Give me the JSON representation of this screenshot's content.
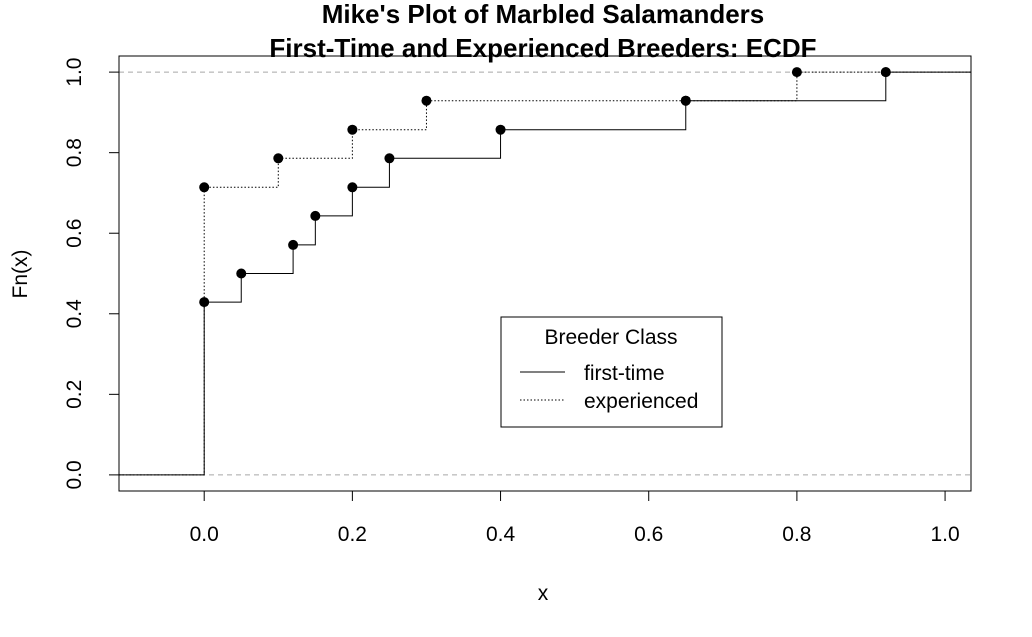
{
  "chart_data": {
    "type": "line",
    "title": "Mike's Plot of Marbled Salamanders",
    "subtitle": "First-Time and Experienced Breeders: ECDF",
    "xlabel": "x",
    "ylabel": "Fn(x)",
    "xlim": [
      -0.115,
      1.035
    ],
    "ylim": [
      -0.04,
      1.04
    ],
    "x_ticks": [
      "0.0",
      "0.2",
      "0.4",
      "0.6",
      "0.8",
      "1.0"
    ],
    "y_ticks": [
      "0.0",
      "0.2",
      "0.4",
      "0.6",
      "0.8",
      "1.0"
    ],
    "reference_lines": [
      0,
      1
    ],
    "grid": false,
    "legend": {
      "title": "Breeder Class",
      "position": "center-right",
      "entries": [
        "first-time",
        "experienced"
      ]
    },
    "series": [
      {
        "name": "first-time",
        "line_style": "solid",
        "x": [
          0.0,
          0.05,
          0.12,
          0.15,
          0.2,
          0.25,
          0.4,
          0.65,
          0.92
        ],
        "y": [
          0.429,
          0.5,
          0.571,
          0.643,
          0.714,
          0.786,
          0.857,
          0.929,
          1.0
        ]
      },
      {
        "name": "experienced",
        "line_style": "dotted",
        "x": [
          0.0,
          0.1,
          0.2,
          0.3,
          0.65,
          0.8,
          0.92
        ],
        "y": [
          0.714,
          0.786,
          0.857,
          0.929,
          0.929,
          1.0,
          1.0
        ]
      }
    ]
  }
}
